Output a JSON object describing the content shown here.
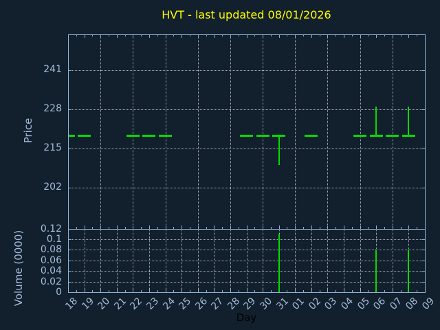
{
  "title": "HVT - last updated 08/01/2026",
  "colors": {
    "background": "#121f2d",
    "axis": "#8eb2d4",
    "tick_label": "#a2bdda",
    "title": "#ffff00",
    "data_green": "#00dd00",
    "grid": "#a4aeb8",
    "day_label_color": "#000000"
  },
  "chart_data": [
    {
      "panel": "price",
      "type": "hlc-tick",
      "title": "HVT - last updated 08/01/2026",
      "ylabel": "Price",
      "yticks": [
        241,
        228,
        215,
        202
      ],
      "ylim": [
        188,
        252.5
      ],
      "grid": "dotted",
      "vertical_grid_every_days": 2,
      "x_tick_labels": [
        "18",
        "19",
        "20",
        "21",
        "22",
        "23",
        "24",
        "25",
        "26",
        "27",
        "28",
        "29",
        "30",
        "31",
        "01",
        "02",
        "03",
        "04",
        "05",
        "06",
        "07",
        "08",
        "09"
      ],
      "points": [
        {
          "day": "18",
          "close": 219.4
        },
        {
          "day": "19",
          "close": 219.4
        },
        {
          "day": "22",
          "close": 219.4
        },
        {
          "day": "23",
          "close": 219.4
        },
        {
          "day": "24",
          "close": 219.4
        },
        {
          "day": "29",
          "close": 219.4
        },
        {
          "day": "30",
          "close": 219.4
        },
        {
          "day": "31",
          "close": 219.4,
          "low": 209.5
        },
        {
          "day": "02",
          "close": 219.4
        },
        {
          "day": "05",
          "close": 219.4
        },
        {
          "day": "06",
          "close": 219.4,
          "high": 229
        },
        {
          "day": "07",
          "close": 219.4
        },
        {
          "day": "08",
          "close": 219.4,
          "high": 229
        }
      ]
    },
    {
      "panel": "volume",
      "type": "bar",
      "ylabel": "Volume (0000)",
      "xlabel": "Day",
      "yticks": [
        0.12,
        0.1,
        0.08,
        0.06,
        0.04,
        0.02,
        0
      ],
      "ylim": [
        0,
        0.12
      ],
      "grid": "dotted",
      "vertical_grid_every_days": 1,
      "bars": [
        {
          "day": "31",
          "value": 0.11
        },
        {
          "day": "06",
          "value": 0.08
        },
        {
          "day": "08",
          "value": 0.08
        }
      ]
    }
  ]
}
